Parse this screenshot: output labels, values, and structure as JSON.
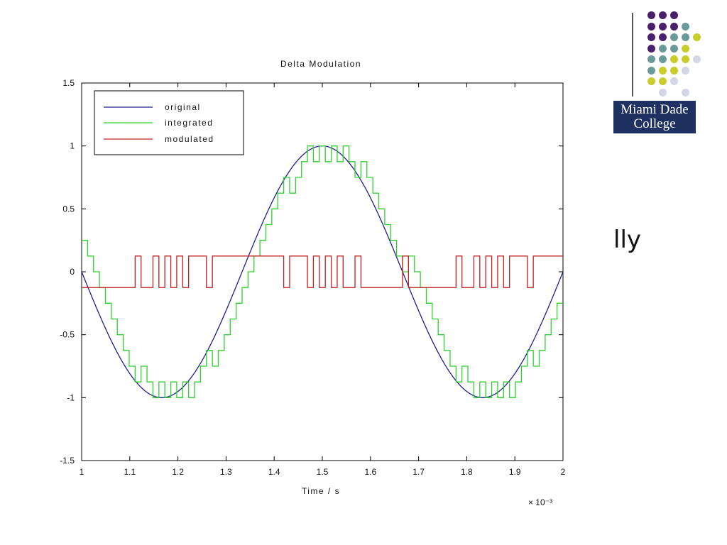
{
  "chart_data": {
    "type": "line",
    "title": "Delta Modulation",
    "xlabel": "Time / s",
    "x_exponent": "× 10⁻³",
    "xlim": [
      1,
      2
    ],
    "ylim": [
      -1.5,
      1.5
    ],
    "x_ticks": [
      "1",
      "1.1",
      "1.2",
      "1.3",
      "1.4",
      "1.5",
      "1.6",
      "1.7",
      "1.8",
      "1.9",
      "2"
    ],
    "y_ticks": [
      "1.5",
      "1",
      "0.5",
      "0",
      "-0.5",
      "-1",
      "-1.5"
    ],
    "legend_position": "top-left",
    "series": [
      {
        "name": "original",
        "color": "#20208f",
        "frequency_per_ms": 1.5,
        "amplitude": 1,
        "phase_description": "sin(2π·1500·t), 1.5 cycles over 1–2 ms"
      },
      {
        "name": "integrated",
        "color": "#2ed02e",
        "step_size": 0.125
      },
      {
        "name": "modulated",
        "color": "#c02020",
        "levels": [
          0.125,
          -0.125
        ]
      }
    ]
  },
  "sidebar": {
    "text": "lly"
  },
  "logo": {
    "line1": "Miami Dade",
    "line2": "College",
    "colors": {
      "purple": "#4a1f6b",
      "teal": "#6b9a9a",
      "yellow": "#c9cc2a",
      "lavender": "#d3d5e8"
    }
  }
}
